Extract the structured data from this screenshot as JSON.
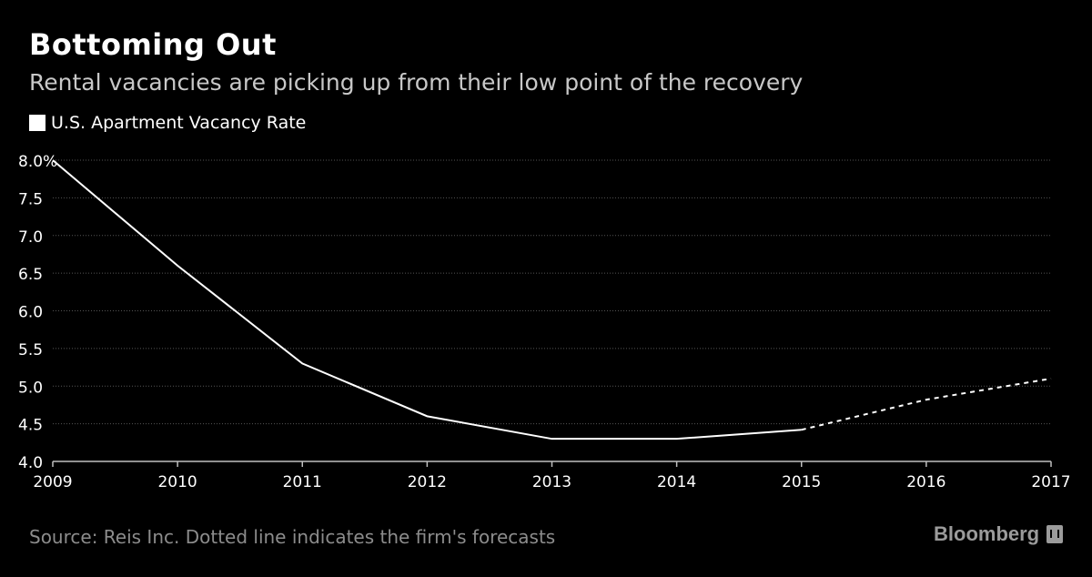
{
  "title": "Bottoming Out",
  "subtitle": "Rental vacancies are picking up from their low point of the recovery",
  "legend_label": "U.S. Apartment Vacancy Rate",
  "source": "Source: Reis Inc. Dotted line indicates the firm's forecasts",
  "brand": "Bloomberg",
  "colors": {
    "background": "#000000",
    "line": "#ffffff",
    "grid": "#555555",
    "axis_text": "#ffffff",
    "source_text": "#8c8c8c"
  },
  "chart_data": {
    "type": "line",
    "title": "Bottoming Out",
    "subtitle": "Rental vacancies are picking up from their low point of the recovery",
    "xlabel": "",
    "ylabel": "",
    "x_ticks": [
      "2009",
      "2010",
      "2011",
      "2012",
      "2013",
      "2014",
      "2015",
      "2016",
      "2017"
    ],
    "y_ticks": [
      "8.0%",
      "7.5",
      "7.0",
      "6.5",
      "6.0",
      "5.5",
      "5.0",
      "4.5",
      "4.0"
    ],
    "ylim": [
      4.0,
      8.0
    ],
    "xlim": [
      2009,
      2017
    ],
    "grid": true,
    "legend_position": "top-left",
    "series": [
      {
        "name": "U.S. Apartment Vacancy Rate",
        "actual": {
          "x": [
            2009,
            2010,
            2011,
            2012,
            2013,
            2014,
            2015
          ],
          "y": [
            8.0,
            6.6,
            5.3,
            4.6,
            4.3,
            4.3,
            4.42
          ]
        },
        "forecast": {
          "x": [
            2015,
            2016,
            2017
          ],
          "y": [
            4.42,
            4.82,
            5.1
          ]
        }
      }
    ]
  }
}
